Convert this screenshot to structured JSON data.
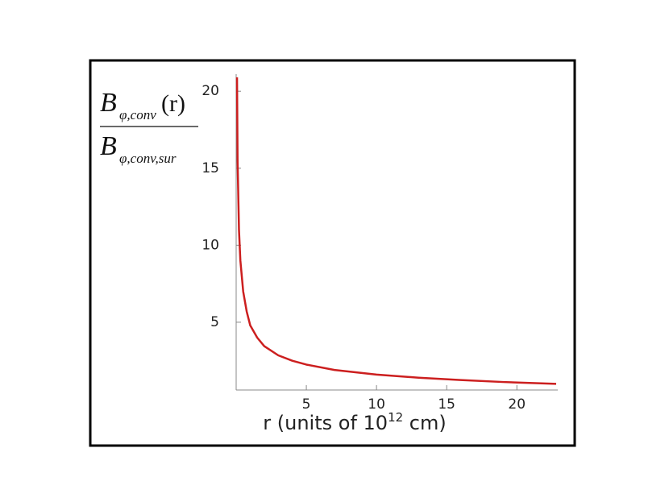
{
  "chart_data": {
    "type": "line",
    "y_label": {
      "numerator": [
        "B",
        "φ,conv",
        "(r)"
      ],
      "denominator": [
        "B",
        "φ,conv,sur"
      ]
    },
    "x_label": [
      "r (units of 10",
      "12",
      " cm)"
    ],
    "x": [
      0.06,
      0.1,
      0.2,
      0.3,
      0.5,
      0.75,
      1,
      1.5,
      2,
      3,
      4,
      5,
      7,
      10,
      13,
      16,
      19,
      22.8
    ],
    "series": [
      {
        "name": "B",
        "color": "#cc1f1f",
        "values": [
          20.9,
          15.5,
          11,
          9,
          7,
          5.7,
          4.8,
          4,
          3.45,
          2.85,
          2.5,
          2.25,
          1.9,
          1.6,
          1.4,
          1.25,
          1.12,
          1.0
        ]
      }
    ],
    "xlim": [
      0,
      22.8
    ],
    "ylim": [
      0.6,
      20.9
    ],
    "xticks": [
      5,
      10,
      15,
      20
    ],
    "yticks": [
      5,
      10,
      15,
      20
    ]
  }
}
